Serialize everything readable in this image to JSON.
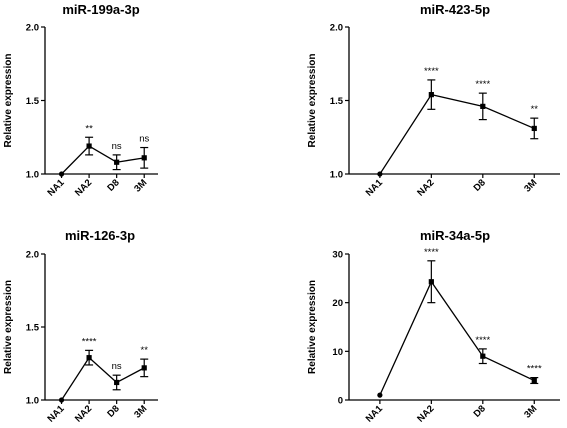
{
  "chart_data": [
    {
      "type": "line",
      "title": "miR-199a-3p",
      "ylabel": "Relative expression",
      "xlabel": "",
      "categories": [
        "NA1",
        "NA2",
        "D8",
        "3M"
      ],
      "yticks": [
        "1.0",
        "1.5",
        "2.0"
      ],
      "ylim": [
        1.0,
        2.0
      ],
      "values": [
        1.0,
        1.19,
        1.08,
        1.11
      ],
      "errors": [
        0.0,
        0.06,
        0.05,
        0.07
      ],
      "significance": [
        "",
        "**",
        "ns",
        "ns"
      ]
    },
    {
      "type": "line",
      "title": "miR-423-5p",
      "ylabel": "Relative expression",
      "xlabel": "",
      "categories": [
        "NA1",
        "NA2",
        "D8",
        "3M"
      ],
      "yticks": [
        "1.0",
        "1.5",
        "2.0"
      ],
      "ylim": [
        1.0,
        2.0
      ],
      "values": [
        1.0,
        1.54,
        1.46,
        1.31
      ],
      "errors": [
        0.0,
        0.1,
        0.09,
        0.07
      ],
      "significance": [
        "",
        "****",
        "****",
        "**"
      ]
    },
    {
      "type": "line",
      "title": "miR-126-3p",
      "ylabel": "Relative expression",
      "xlabel": "",
      "categories": [
        "NA1",
        "NA2",
        "D8",
        "3M"
      ],
      "yticks": [
        "1.0",
        "1.5",
        "2.0"
      ],
      "ylim": [
        1.0,
        2.0
      ],
      "values": [
        1.0,
        1.29,
        1.12,
        1.22
      ],
      "errors": [
        0.0,
        0.05,
        0.05,
        0.06
      ],
      "significance": [
        "",
        "****",
        "ns",
        "**"
      ]
    },
    {
      "type": "line",
      "title": "miR-34a-5p",
      "ylabel": "Relative expression",
      "xlabel": "",
      "categories": [
        "NA1",
        "NA2",
        "D8",
        "3M"
      ],
      "yticks": [
        "0",
        "10",
        "20",
        "30"
      ],
      "ylim": [
        0,
        30
      ],
      "values": [
        1.0,
        24.3,
        9.0,
        4.0
      ],
      "errors": [
        0.0,
        4.3,
        1.5,
        0.6
      ],
      "significance": [
        "",
        "****",
        "****",
        "****"
      ]
    }
  ]
}
